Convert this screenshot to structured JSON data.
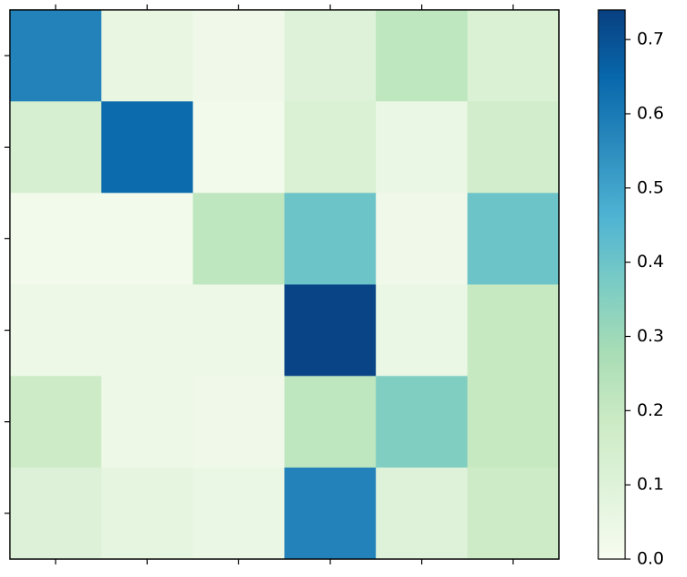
{
  "chart_data": {
    "type": "heatmap",
    "colormap": "GnBu",
    "values": [
      [
        0.58,
        0.06,
        0.03,
        0.1,
        0.22,
        0.12
      ],
      [
        0.14,
        0.64,
        0.02,
        0.12,
        0.05,
        0.16
      ],
      [
        0.02,
        0.02,
        0.22,
        0.4,
        0.03,
        0.4
      ],
      [
        0.04,
        0.04,
        0.04,
        0.73,
        0.05,
        0.2
      ],
      [
        0.18,
        0.04,
        0.03,
        0.22,
        0.36,
        0.2
      ],
      [
        0.11,
        0.07,
        0.05,
        0.58,
        0.1,
        0.18
      ]
    ],
    "clim": [
      0,
      0.74
    ],
    "cticks": [
      {
        "value": 0,
        "label": "0.0"
      },
      0.1,
      0.2,
      0.3,
      0.4,
      0.5,
      0.6,
      0.7
    ]
  }
}
